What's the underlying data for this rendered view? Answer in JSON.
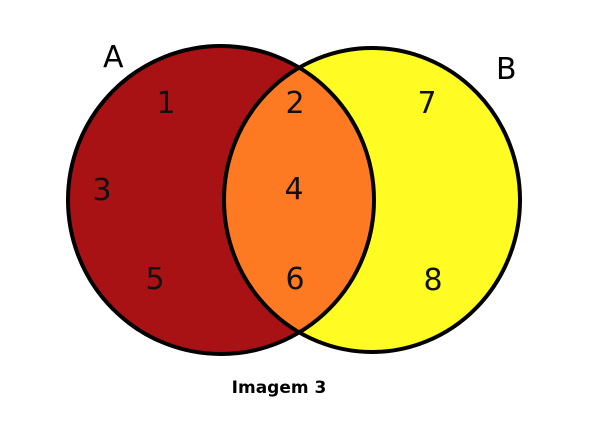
{
  "diagram": {
    "type": "venn",
    "sets": [
      {
        "name": "A",
        "color": "#a91215",
        "exclusive_elements": [
          "1",
          "3",
          "5"
        ]
      },
      {
        "name": "B",
        "color": "#fffb23",
        "exclusive_elements": [
          "7",
          "8"
        ]
      }
    ],
    "intersection": {
      "color": "#fe7a22",
      "elements": [
        "2",
        "4",
        "6"
      ]
    },
    "outline_color": "#000000"
  },
  "caption": "Imagem 3"
}
